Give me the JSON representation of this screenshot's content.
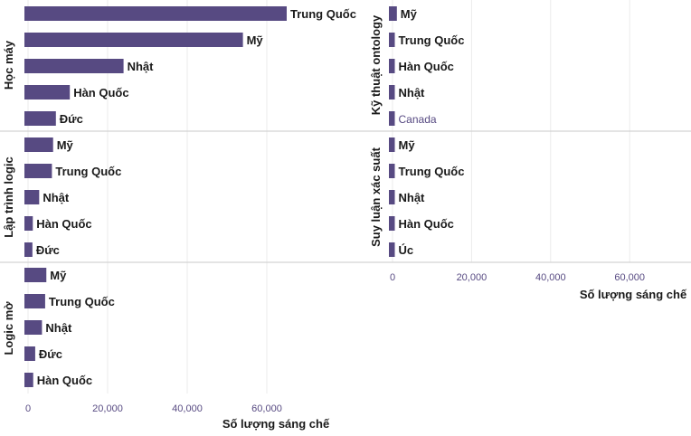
{
  "chart_data": {
    "type": "bar",
    "orientation": "horizontal",
    "xlabel": "Số lượng sáng chế",
    "xlim": [
      -5000,
      75000
    ],
    "xticks": [
      0,
      20000,
      40000,
      60000
    ],
    "xtick_labels": [
      "0",
      "20,000",
      "40,000",
      "60,000"
    ],
    "bar_color": "#574a82",
    "panels": [
      {
        "facet": "Học máy",
        "categories": [
          "Trung Quốc",
          "Mỹ",
          "Nhật",
          "Hàn Quốc",
          "Đức"
        ],
        "values": [
          65000,
          54000,
          24000,
          10500,
          7000
        ]
      },
      {
        "facet": "Lập trình logic",
        "categories": [
          "Mỹ",
          "Trung Quốc",
          "Nhật",
          "Hàn Quốc",
          "Đức"
        ],
        "values": [
          6300,
          6000,
          2800,
          1200,
          1100
        ]
      },
      {
        "facet": "Logic mờ",
        "categories": [
          "Mỹ",
          "Trung Quốc",
          "Nhật",
          "Đức",
          "Hàn Quốc"
        ],
        "values": [
          4600,
          4300,
          3500,
          1800,
          1300
        ]
      },
      {
        "facet": "Kỹ thuật ontology",
        "categories": [
          "Mỹ",
          "Trung Quốc",
          "Hàn Quốc",
          "Nhật",
          "Canada"
        ],
        "values": [
          1100,
          300,
          300,
          250,
          150
        ]
      },
      {
        "facet": "Suy luận xác suất",
        "categories": [
          "Mỹ",
          "Trung Quốc",
          "Nhật",
          "Hàn Quốc",
          "Úc"
        ],
        "values": [
          450,
          350,
          300,
          250,
          150
        ]
      }
    ]
  }
}
